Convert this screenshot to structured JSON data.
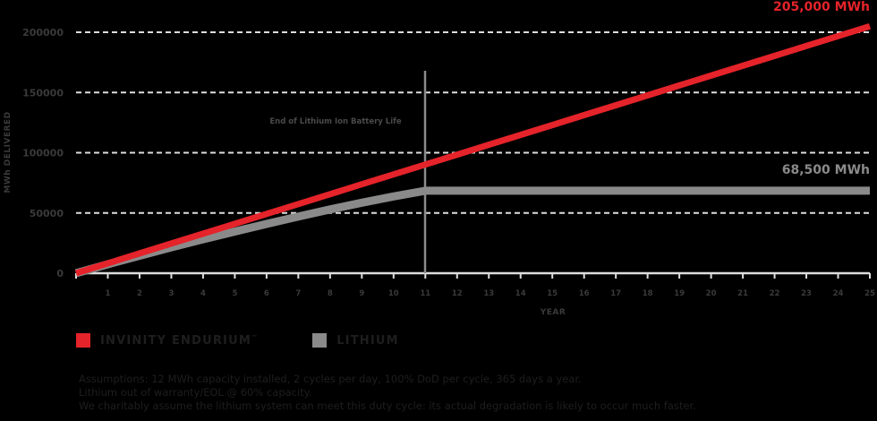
{
  "chart_data": {
    "type": "line",
    "title": "",
    "xlabel": "YEAR",
    "ylabel": "MWh DELIVERED",
    "x": [
      0,
      1,
      2,
      3,
      4,
      5,
      6,
      7,
      8,
      9,
      10,
      11,
      12,
      13,
      14,
      15,
      16,
      17,
      18,
      19,
      20,
      21,
      22,
      23,
      24,
      25
    ],
    "xticks": [
      "1",
      "2",
      "3",
      "4",
      "5",
      "6",
      "7",
      "8",
      "9",
      "10",
      "11",
      "12",
      "13",
      "14",
      "15",
      "16",
      "17",
      "18",
      "19",
      "20",
      "21",
      "22",
      "23",
      "24",
      "25"
    ],
    "yticks": [
      "0",
      "50000",
      "100000",
      "150000",
      "200000"
    ],
    "ylim": [
      0,
      200000
    ],
    "xlim": [
      0,
      25
    ],
    "grid": "horizontal dashed",
    "series": [
      {
        "name": "INVINITY ENDURIUM™",
        "color": "#e5232a",
        "values": [
          0,
          8200,
          16400,
          24600,
          32800,
          41000,
          49200,
          57400,
          65600,
          73800,
          82000,
          90200,
          98400,
          106600,
          114800,
          123000,
          131200,
          139400,
          147600,
          155800,
          164000,
          172200,
          180400,
          188600,
          196800,
          205000
        ]
      },
      {
        "name": "LITHIUM",
        "color": "#8a8a8a",
        "values": [
          0,
          7400,
          14500,
          21400,
          28100,
          34600,
          40900,
          47000,
          52900,
          58500,
          63700,
          68500,
          68500,
          68500,
          68500,
          68500,
          68500,
          68500,
          68500,
          68500,
          68500,
          68500,
          68500,
          68500,
          68500,
          68500
        ]
      }
    ],
    "annotations": [
      {
        "text": "205,000 MWh",
        "x": 25,
        "y": 205000,
        "color": "#e5232a"
      },
      {
        "text": "68,500 MWh",
        "x": 25,
        "y": 68500,
        "color": "#8a8a8a"
      },
      {
        "text": "End of Lithium Ion Battery Life",
        "x": 11,
        "type": "vertical-line"
      }
    ],
    "legend_position": "bottom-left"
  },
  "labels": {
    "red_end": "205,000 MWh",
    "gray_end": "68,500 MWh",
    "eol": "End of Lithium Ion Battery Life",
    "xlabel": "YEAR",
    "ylabel": "MWh DELIVERED"
  },
  "legend": {
    "items": [
      {
        "label": "INVINITY ENDURIUM",
        "mark": "™",
        "color": "#e5232a"
      },
      {
        "label": "LITHIUM",
        "mark": "",
        "color": "#8a8a8a"
      }
    ]
  },
  "notes": [
    "Assumptions: 12 MWh capacity installed, 2 cycles per day, 100% DoD per cycle, 365 days a year.",
    "Lithium out of warranty/EOL @ 60% capacity.",
    "We charitably assume the lithium system can meet this duty cycle: its actual degradation is likely to occur much faster."
  ]
}
